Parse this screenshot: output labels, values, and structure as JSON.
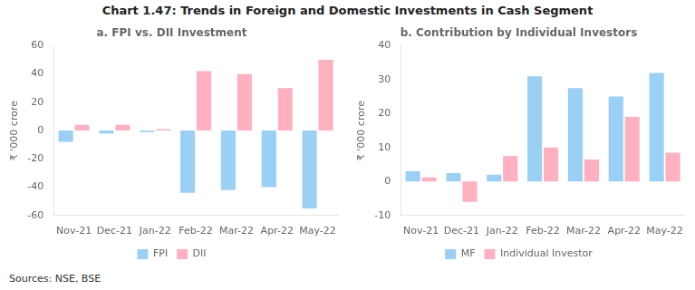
{
  "title": "Chart 1.47: Trends in Foreign and Domestic Investments in Cash Segment",
  "annotations": [
    "Sources: NSE, BSE"
  ],
  "chart_data": [
    {
      "type": "bar",
      "title": "a. FPI vs. DII Investment",
      "y_label": "₹ '000 crore",
      "categories": [
        "Nov-21",
        "Dec-21",
        "Jan-22",
        "Feb-22",
        "Mar-22",
        "Apr-22",
        "May-22"
      ],
      "series": [
        {
          "name": "FPI",
          "values": [
            -8,
            -2,
            -1,
            -44,
            -42,
            -40,
            -55
          ]
        },
        {
          "name": "DII",
          "values": [
            4,
            4,
            1,
            42,
            40,
            30,
            50
          ]
        }
      ],
      "ylim": [
        -60,
        60
      ],
      "yticks": [
        -60,
        -40,
        -20,
        0,
        20,
        40,
        60
      ],
      "grid": false,
      "legend": "bottom"
    },
    {
      "type": "bar",
      "title": "b. Contribution by Individual Investors",
      "y_label": "₹ '000 crore",
      "categories": [
        "Nov-21",
        "Dec-21",
        "Jan-22",
        "Feb-22",
        "Mar-22",
        "Apr-22",
        "May-22"
      ],
      "series": [
        {
          "name": "MF",
          "values": [
            3,
            2.5,
            2,
            31,
            27.5,
            25,
            32
          ]
        },
        {
          "name": "Individual Investor",
          "values": [
            1.2,
            -6,
            7.5,
            10,
            6.5,
            19,
            8.5
          ]
        }
      ],
      "ylim": [
        -10,
        40
      ],
      "yticks": [
        -10,
        0,
        10,
        20,
        30,
        40
      ],
      "grid": false,
      "legend": "bottom"
    }
  ]
}
